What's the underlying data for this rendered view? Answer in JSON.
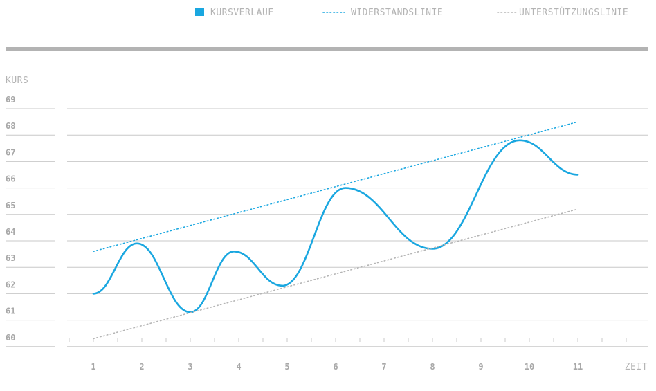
{
  "colors": {
    "price": "#1aa7e0",
    "resistance": "#1aa7e0",
    "support": "#b5b5b5",
    "grid": "#c8c8c8",
    "separator": "#b3b3b3",
    "text": "#a8a8a8"
  },
  "legend": {
    "price_label": "KURSVERLAUF",
    "resistance_label": "WIDERSTANDSLINIE",
    "support_label": "UNTERSTÜTZUNGSLINIE"
  },
  "chart_data": {
    "type": "line",
    "ylabel": "KURS",
    "xlabel": "ZEIT",
    "y_ticks": [
      "69",
      "68",
      "67",
      "66",
      "65",
      "64",
      "63",
      "62",
      "61",
      "60"
    ],
    "x_ticks": [
      "1",
      "2",
      "3",
      "4",
      "5",
      "6",
      "7",
      "8",
      "9",
      "10",
      "11"
    ],
    "xlim": [
      1,
      11
    ],
    "ylim": [
      60,
      69
    ],
    "grid": true,
    "legend_position": "top-right",
    "series": [
      {
        "name": "KURSVERLAUF",
        "style": "solid",
        "points": [
          [
            1,
            62.0
          ],
          [
            1.9,
            63.9
          ],
          [
            3,
            61.3
          ],
          [
            3.9,
            63.6
          ],
          [
            4.9,
            62.3
          ],
          [
            6.2,
            66.0
          ],
          [
            8,
            63.7
          ],
          [
            9.8,
            67.8
          ],
          [
            11,
            66.5
          ]
        ]
      },
      {
        "name": "WIDERSTANDSLINIE",
        "style": "dotted",
        "points": [
          [
            1,
            63.6
          ],
          [
            11,
            68.5
          ]
        ]
      },
      {
        "name": "UNTERSTÜTZUNGSLINIE",
        "style": "dotted",
        "points": [
          [
            1,
            60.3
          ],
          [
            11,
            65.2
          ]
        ]
      }
    ]
  }
}
